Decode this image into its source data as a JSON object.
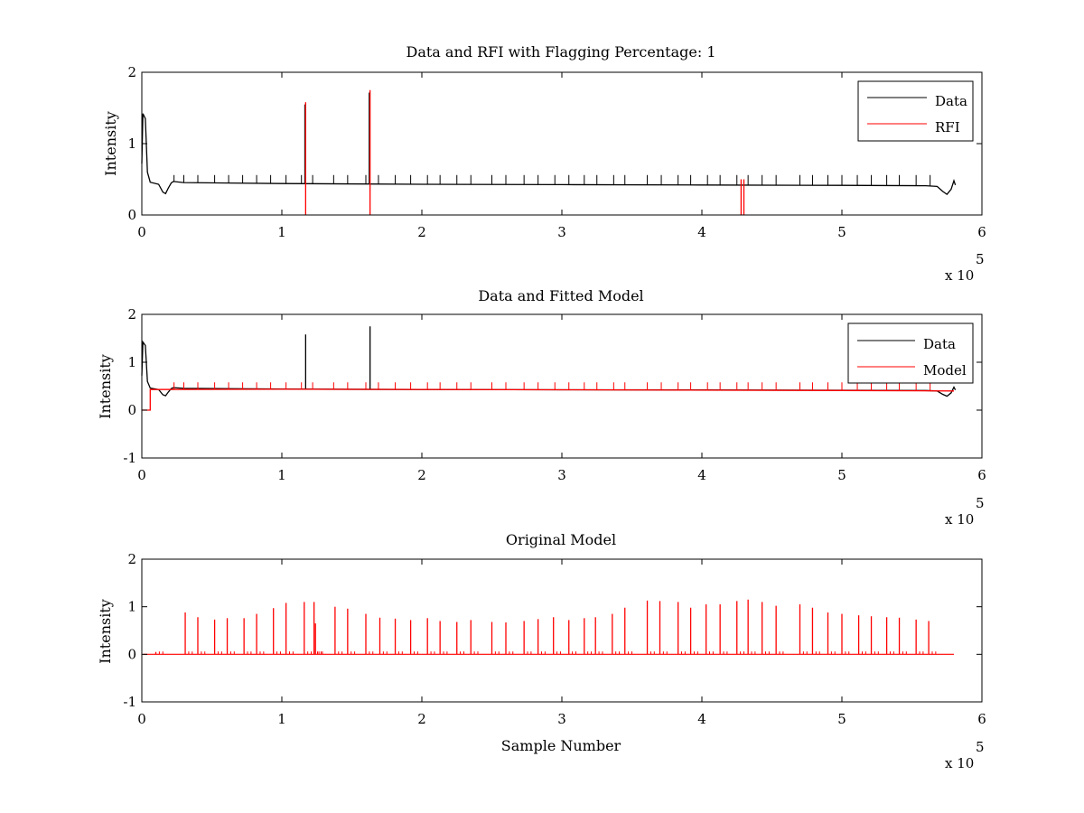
{
  "chart_data": [
    {
      "type": "line",
      "title": "Data and RFI with Flagging Percentage: 1",
      "xlabel": "",
      "ylabel": "Intensity",
      "xlim": [
        0,
        600000
      ],
      "ylim": [
        0,
        2
      ],
      "xticks": [
        0,
        1,
        2,
        3,
        4,
        5,
        6
      ],
      "yticks": [
        0,
        1,
        2
      ],
      "x_multiplier_label": "x 10",
      "x_multiplier_exponent": "5",
      "grid": false,
      "legend_position": "top-right",
      "legend": [
        "Data",
        "RFI"
      ],
      "series": [
        {
          "name": "Data",
          "color": "#000000",
          "baseline_points": [
            [
              0,
              0.72
            ],
            [
              800,
              1.42
            ],
            [
              2500,
              1.35
            ],
            [
              4000,
              0.6
            ],
            [
              6000,
              0.46
            ],
            [
              12000,
              0.43
            ],
            [
              15000,
              0.32
            ],
            [
              17000,
              0.3
            ],
            [
              19000,
              0.38
            ],
            [
              21000,
              0.45
            ],
            [
              22500,
              0.47
            ],
            [
              30000,
              0.455
            ],
            [
              100000,
              0.44
            ],
            [
              200000,
              0.43
            ],
            [
              300000,
              0.425
            ],
            [
              400000,
              0.42
            ],
            [
              500000,
              0.415
            ],
            [
              560000,
              0.41
            ],
            [
              568000,
              0.4
            ],
            [
              572000,
              0.33
            ],
            [
              575000,
              0.29
            ],
            [
              578000,
              0.36
            ],
            [
              580000,
              0.48
            ],
            [
              581000,
              0.42
            ]
          ],
          "pulse_x": [
            23000,
            30000,
            40000,
            52000,
            62000,
            72000,
            82000,
            92000,
            103000,
            114000,
            122000,
            137000,
            147000,
            160000,
            169000,
            181000,
            192000,
            204000,
            213000,
            225000,
            235000,
            250000,
            260000,
            273000,
            283000,
            295000,
            305000,
            316000,
            325000,
            337000,
            345000,
            361000,
            371000,
            383000,
            392000,
            404000,
            413000,
            425000,
            433000,
            443000,
            453000,
            470000,
            479000,
            490000,
            500000,
            511000,
            521000,
            532000,
            541000,
            553000,
            563000
          ],
          "pulse_peak": 0.56,
          "flagged_spikes": [
            {
              "x": 117000,
              "peak": 1.58
            },
            {
              "x": 163000,
              "peak": 1.75
            }
          ]
        },
        {
          "name": "RFI",
          "color": "#ff0000",
          "spikes": [
            {
              "x": 117000,
              "peak": 1.58
            },
            {
              "x": 163000,
              "peak": 1.75
            },
            {
              "x": 428000,
              "peak": 0.5
            },
            {
              "x": 430000,
              "peak": 0.5
            }
          ]
        }
      ]
    },
    {
      "type": "line",
      "title": "Data and Fitted Model",
      "xlabel": "",
      "ylabel": "Intensity",
      "xlim": [
        0,
        600000
      ],
      "ylim": [
        -1,
        2
      ],
      "xticks": [
        0,
        1,
        2,
        3,
        4,
        5,
        6
      ],
      "yticks": [
        -1,
        0,
        1,
        2
      ],
      "x_multiplier_label": "x 10",
      "x_multiplier_exponent": "5",
      "grid": false,
      "legend_position": "top-right",
      "legend": [
        "Data",
        "Model"
      ],
      "series": [
        {
          "name": "Data",
          "color": "#000000",
          "baseline_points": [
            [
              0,
              0.72
            ],
            [
              800,
              1.42
            ],
            [
              2500,
              1.35
            ],
            [
              4000,
              0.6
            ],
            [
              6000,
              0.46
            ],
            [
              12000,
              0.43
            ],
            [
              15000,
              0.32
            ],
            [
              17000,
              0.3
            ],
            [
              19000,
              0.38
            ],
            [
              21000,
              0.45
            ],
            [
              22500,
              0.47
            ],
            [
              30000,
              0.455
            ],
            [
              100000,
              0.44
            ],
            [
              200000,
              0.43
            ],
            [
              300000,
              0.425
            ],
            [
              400000,
              0.42
            ],
            [
              500000,
              0.415
            ],
            [
              560000,
              0.41
            ],
            [
              568000,
              0.4
            ],
            [
              572000,
              0.33
            ],
            [
              575000,
              0.29
            ],
            [
              578000,
              0.36
            ],
            [
              580000,
              0.48
            ],
            [
              581000,
              0.42
            ]
          ],
          "spikes": [
            {
              "x": 117000,
              "peak": 1.58
            },
            {
              "x": 163000,
              "peak": 1.75
            }
          ]
        },
        {
          "name": "Model",
          "color": "#ff0000",
          "baseline_points": [
            [
              0,
              0
            ],
            [
              6000,
              0
            ],
            [
              6000,
              0.43
            ],
            [
              100000,
              0.435
            ],
            [
              300000,
              0.425
            ],
            [
              500000,
              0.41
            ],
            [
              580000,
              0.4
            ]
          ],
          "pulse_x": [
            23000,
            30000,
            40000,
            52000,
            62000,
            72000,
            82000,
            92000,
            103000,
            114000,
            122000,
            137000,
            147000,
            160000,
            169000,
            181000,
            192000,
            204000,
            213000,
            225000,
            235000,
            250000,
            260000,
            273000,
            283000,
            295000,
            305000,
            316000,
            325000,
            337000,
            345000,
            361000,
            371000,
            383000,
            392000,
            404000,
            413000,
            425000,
            433000,
            443000,
            453000,
            470000,
            479000,
            490000,
            500000,
            511000,
            521000,
            532000,
            541000,
            553000,
            563000
          ],
          "pulse_peak": 0.58
        }
      ]
    },
    {
      "type": "line",
      "title": "Original Model",
      "xlabel": "Sample Number",
      "ylabel": "Intensity",
      "xlim": [
        0,
        600000
      ],
      "ylim": [
        -1,
        2
      ],
      "xticks": [
        0,
        1,
        2,
        3,
        4,
        5,
        6
      ],
      "yticks": [
        -1,
        0,
        1,
        2
      ],
      "x_multiplier_label": "x 10",
      "x_multiplier_exponent": "5",
      "grid": false,
      "series": [
        {
          "name": "",
          "color": "#ff0000",
          "baseline": 0,
          "x_range": [
            1000,
            580000
          ],
          "spikes": [
            {
              "x": 10000,
              "peak": 0.05
            },
            {
              "x": 31000,
              "peak": 0.88
            },
            {
              "x": 40000,
              "peak": 0.78
            },
            {
              "x": 52000,
              "peak": 0.73
            },
            {
              "x": 61000,
              "peak": 0.76
            },
            {
              "x": 73000,
              "peak": 0.76
            },
            {
              "x": 82000,
              "peak": 0.85
            },
            {
              "x": 94000,
              "peak": 0.97
            },
            {
              "x": 103000,
              "peak": 1.08
            },
            {
              "x": 116000,
              "peak": 1.1
            },
            {
              "x": 123000,
              "peak": 1.1
            },
            {
              "x": 124000,
              "peak": 0.65
            },
            {
              "x": 138000,
              "peak": 1.0
            },
            {
              "x": 147000,
              "peak": 0.96
            },
            {
              "x": 160000,
              "peak": 0.85
            },
            {
              "x": 170000,
              "peak": 0.77
            },
            {
              "x": 181000,
              "peak": 0.75
            },
            {
              "x": 192000,
              "peak": 0.72
            },
            {
              "x": 204000,
              "peak": 0.76
            },
            {
              "x": 213000,
              "peak": 0.7
            },
            {
              "x": 225000,
              "peak": 0.68
            },
            {
              "x": 235000,
              "peak": 0.72
            },
            {
              "x": 250000,
              "peak": 0.68
            },
            {
              "x": 260000,
              "peak": 0.67
            },
            {
              "x": 273000,
              "peak": 0.7
            },
            {
              "x": 283000,
              "peak": 0.74
            },
            {
              "x": 294000,
              "peak": 0.78
            },
            {
              "x": 305000,
              "peak": 0.72
            },
            {
              "x": 316000,
              "peak": 0.76
            },
            {
              "x": 324000,
              "peak": 0.78
            },
            {
              "x": 336000,
              "peak": 0.85
            },
            {
              "x": 345000,
              "peak": 0.98
            },
            {
              "x": 361000,
              "peak": 1.13
            },
            {
              "x": 370000,
              "peak": 1.12
            },
            {
              "x": 383000,
              "peak": 1.1
            },
            {
              "x": 392000,
              "peak": 0.98
            },
            {
              "x": 403000,
              "peak": 1.05
            },
            {
              "x": 413000,
              "peak": 1.05
            },
            {
              "x": 425000,
              "peak": 1.12
            },
            {
              "x": 433000,
              "peak": 1.15
            },
            {
              "x": 443000,
              "peak": 1.1
            },
            {
              "x": 453000,
              "peak": 1.02
            },
            {
              "x": 470000,
              "peak": 1.05
            },
            {
              "x": 479000,
              "peak": 0.98
            },
            {
              "x": 490000,
              "peak": 0.88
            },
            {
              "x": 500000,
              "peak": 0.85
            },
            {
              "x": 512000,
              "peak": 0.82
            },
            {
              "x": 521000,
              "peak": 0.8
            },
            {
              "x": 532000,
              "peak": 0.78
            },
            {
              "x": 541000,
              "peak": 0.77
            },
            {
              "x": 553000,
              "peak": 0.73
            },
            {
              "x": 562000,
              "peak": 0.7
            }
          ],
          "minor_spike_peak": 0.06
        }
      ]
    }
  ]
}
